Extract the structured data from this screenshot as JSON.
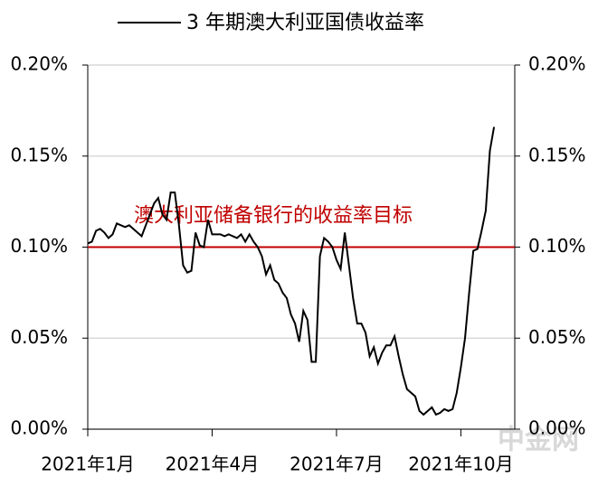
{
  "chart_data": {
    "type": "line",
    "series": [
      {
        "name": "3 年期澳大利亚国债收益率",
        "color": "#000000",
        "values": [
          0.102,
          0.103,
          0.109,
          0.11,
          0.108,
          0.105,
          0.107,
          0.113,
          0.112,
          0.111,
          0.112,
          0.11,
          0.108,
          0.106,
          0.112,
          0.118,
          0.124,
          0.127,
          0.118,
          0.115,
          0.13,
          0.13,
          0.112,
          0.09,
          0.086,
          0.087,
          0.108,
          0.101,
          0.1,
          0.115,
          0.107,
          0.107,
          0.107,
          0.106,
          0.107,
          0.106,
          0.105,
          0.107,
          0.103,
          0.107,
          0.103,
          0.1,
          0.095,
          0.085,
          0.09,
          0.082,
          0.08,
          0.075,
          0.072,
          0.063,
          0.058,
          0.048,
          0.065,
          0.06,
          0.037,
          0.037,
          0.095,
          0.105,
          0.103,
          0.1,
          0.093,
          0.088,
          0.108,
          0.09,
          0.072,
          0.058,
          0.058,
          0.053,
          0.04,
          0.045,
          0.036,
          0.042,
          0.046,
          0.046,
          0.051,
          0.04,
          0.03,
          0.022,
          0.02,
          0.018,
          0.01,
          0.008,
          0.01,
          0.012,
          0.008,
          0.009,
          0.011,
          0.01,
          0.011,
          0.02,
          0.034,
          0.05,
          0.075,
          0.098,
          0.099,
          0.109,
          0.12,
          0.153,
          0.166
        ]
      }
    ],
    "xlim": [
      0,
      103
    ],
    "xticks": [
      {
        "value": 0,
        "label": "2021年1月"
      },
      {
        "value": 30,
        "label": "2021年4月"
      },
      {
        "value": 60,
        "label": "2021年7月"
      },
      {
        "value": 90,
        "label": "2021年10月"
      }
    ],
    "ylim": [
      0,
      0.2
    ],
    "yticks": [
      {
        "value": 0,
        "label": "0.00%"
      },
      {
        "value": 0.05,
        "label": "0.05%"
      },
      {
        "value": 0.1,
        "label": "0.10%"
      },
      {
        "value": 0.15,
        "label": "0.15%"
      },
      {
        "value": 0.2,
        "label": "0.20%"
      }
    ],
    "y2lim": [
      0,
      0.2
    ],
    "y2ticks": [
      {
        "value": 0,
        "label": "0.00%"
      },
      {
        "value": 0.05,
        "label": "0.05%"
      },
      {
        "value": 0.1,
        "label": "0.10%"
      },
      {
        "value": 0.15,
        "label": "0.15%"
      },
      {
        "value": 0.2,
        "label": "0.20%"
      }
    ],
    "grid": true,
    "legend": "top",
    "reference_line": {
      "value": 0.1,
      "label": "澳大利亚储备银行的收益率目标",
      "color": "#c00000"
    },
    "watermark": "中金网"
  }
}
